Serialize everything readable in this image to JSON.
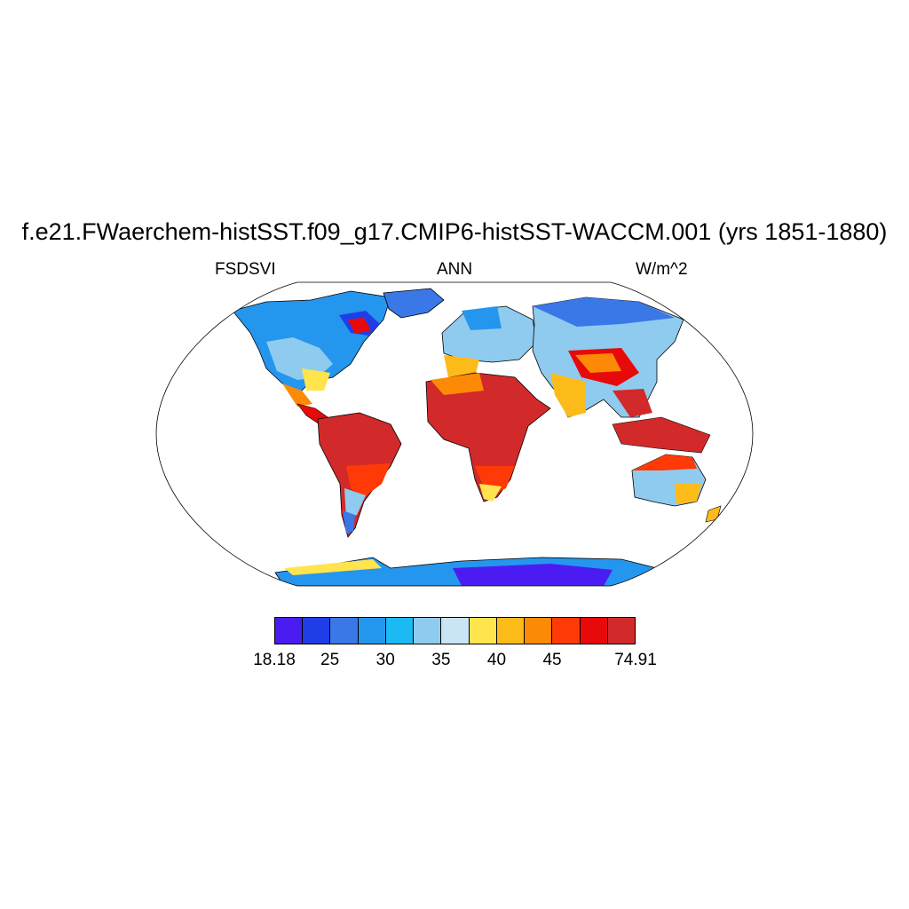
{
  "title": "f.e21.FWaerchem-histSST.f09_g17.CMIP6-histSST-WACCM.001 (yrs 1851-1880)",
  "left_string": "FSDSVI",
  "center_string": "ANN",
  "right_string": "W/m^2",
  "colorbar": {
    "colors": [
      "#4b1cf2",
      "#1f3ee8",
      "#3a78e8",
      "#2596ee",
      "#1cbaf2",
      "#8fcbee",
      "#c9e4f5",
      "#ffe44d",
      "#fdbb1a",
      "#fd8a06",
      "#ff3a06",
      "#e80a0a",
      "#d22a2a"
    ],
    "labels": [
      {
        "text": "18.18",
        "index": 0
      },
      {
        "text": "25",
        "index": 2
      },
      {
        "text": "30",
        "index": 4
      },
      {
        "text": "35",
        "index": 6
      },
      {
        "text": "40",
        "index": 8
      },
      {
        "text": "45",
        "index": 10
      },
      {
        "text": "74.91",
        "index": 13
      }
    ]
  },
  "map": {
    "projection": "robinson",
    "variable": "FSDSVI",
    "season": "ANN",
    "units": "W/m^2",
    "ocean_color": "#ffffff",
    "coastline_color": "#000000"
  }
}
